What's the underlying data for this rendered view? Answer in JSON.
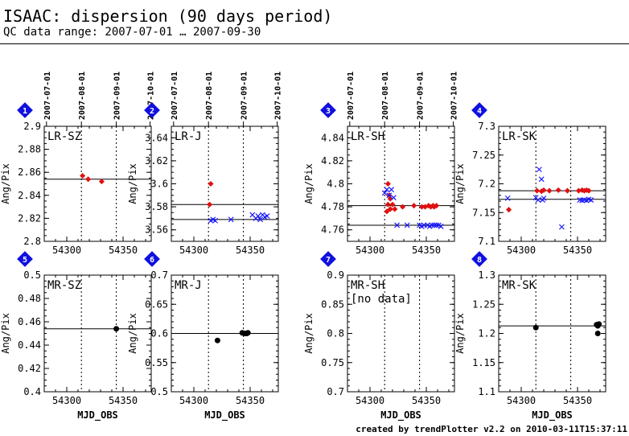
{
  "header": {
    "title": "ISAAC: dispersion (90 days period)",
    "subtitle": "QC data range: 2007-07-01 … 2007-09-30"
  },
  "footer": "created by trendPlotter v2.2 on 2010-03-11T15:37:11",
  "colors": {
    "red": "#e01010",
    "blue": "#1a1aff",
    "black": "#000000",
    "marker": "#1010e0"
  },
  "chart_data": [
    {
      "id": 1,
      "label": "LR-SZ",
      "type": "scatter",
      "ylabel": "Ang/Pix",
      "xlabel": "",
      "xlim": [
        54280,
        54375
      ],
      "ylim": [
        2.8,
        2.9
      ],
      "yticks": [
        "2.8",
        "2.82",
        "2.84",
        "2.86",
        "2.88",
        "2.9"
      ],
      "xticks": [
        "54300",
        "54350"
      ],
      "date_labels": [
        "2007-07-01",
        "2007-08-01",
        "2007-09-01",
        "2007-10-01"
      ],
      "ref_lines": [
        2.854
      ],
      "series": [
        {
          "marker": "diamond",
          "color": "#e01010",
          "points": [
            [
              54314,
              2.857
            ],
            [
              54319,
              2.854
            ],
            [
              54331,
              2.852
            ]
          ]
        }
      ]
    },
    {
      "id": 2,
      "label": "LR-J",
      "type": "scatter",
      "ylabel": "Ang/Pix",
      "xlabel": "",
      "xlim": [
        54280,
        54375
      ],
      "ylim": [
        3.55,
        3.65
      ],
      "yticks": [
        "3.56",
        "3.58",
        "3.6",
        "3.62",
        "3.64"
      ],
      "xticks": [
        "54300",
        "54350"
      ],
      "date_labels": [
        "2007-07-01",
        "2007-08-01",
        "2007-09-01",
        "2007-10-01"
      ],
      "ref_lines": [
        3.582,
        3.569
      ],
      "series": [
        {
          "marker": "diamond",
          "color": "#e01010",
          "points": [
            [
              54315,
              3.6
            ],
            [
              54314,
              3.582
            ]
          ]
        },
        {
          "marker": "cross",
          "color": "#1a1aff",
          "points": [
            [
              54315,
              3.568
            ],
            [
              54317,
              3.569
            ],
            [
              54319,
              3.568
            ],
            [
              54333,
              3.569
            ],
            [
              54352,
              3.573
            ],
            [
              54355,
              3.57
            ],
            [
              54357,
              3.572
            ],
            [
              54359,
              3.569
            ],
            [
              54361,
              3.573
            ],
            [
              54363,
              3.571
            ],
            [
              54365,
              3.572
            ]
          ]
        }
      ]
    },
    {
      "id": 3,
      "label": "LR-SH",
      "type": "scatter",
      "ylabel": "Ang/Pix",
      "xlabel": "",
      "xlim": [
        54280,
        54375
      ],
      "ylim": [
        4.75,
        4.85
      ],
      "yticks": [
        "4.76",
        "4.78",
        "4.8",
        "4.82",
        "4.84"
      ],
      "xticks": [
        "54300",
        "54350"
      ],
      "date_labels": [
        "2007-07-01",
        "2007-08-01",
        "2007-09-01",
        "2007-10-01"
      ],
      "ref_lines": [
        4.781,
        4.764
      ],
      "series": [
        {
          "marker": "diamond",
          "color": "#e01010",
          "points": [
            [
              54316,
              4.8
            ],
            [
              54317,
              4.79
            ],
            [
              54318,
              4.787
            ],
            [
              54316,
              4.782
            ],
            [
              54315,
              4.776
            ],
            [
              54318,
              4.778
            ],
            [
              54320,
              4.782
            ],
            [
              54322,
              4.778
            ],
            [
              54329,
              4.78
            ],
            [
              54339,
              4.781
            ],
            [
              54346,
              4.78
            ],
            [
              54349,
              4.78
            ],
            [
              54352,
              4.781
            ],
            [
              54354,
              4.78
            ],
            [
              54356,
              4.781
            ],
            [
              54357,
              4.78
            ],
            [
              54359,
              4.781
            ]
          ]
        },
        {
          "marker": "cross",
          "color": "#1a1aff",
          "points": [
            [
              54313,
              4.792
            ],
            [
              54315,
              4.795
            ],
            [
              54317,
              4.79
            ],
            [
              54319,
              4.795
            ],
            [
              54321,
              4.788
            ],
            [
              54324,
              4.764
            ],
            [
              54333,
              4.764
            ],
            [
              54344,
              4.764
            ],
            [
              54346,
              4.763
            ],
            [
              54348,
              4.764
            ],
            [
              54351,
              4.764
            ],
            [
              54353,
              4.763
            ],
            [
              54355,
              4.764
            ],
            [
              54357,
              4.764
            ],
            [
              54359,
              4.764
            ],
            [
              54361,
              4.764
            ],
            [
              54363,
              4.763
            ]
          ]
        }
      ]
    },
    {
      "id": 4,
      "label": "LR-SK",
      "type": "scatter",
      "ylabel": "Ang/Pix",
      "xlabel": "",
      "xlim": [
        54280,
        54375
      ],
      "ylim": [
        7.1,
        7.3
      ],
      "yticks": [
        "7.1",
        "7.15",
        "7.2",
        "7.25",
        "7.3"
      ],
      "xticks": [
        "54300",
        "54350"
      ],
      "date_labels": [],
      "ref_lines": [
        7.188,
        7.173
      ],
      "series": [
        {
          "marker": "diamond",
          "color": "#e01010",
          "points": [
            [
              54289,
              7.155
            ],
            [
              54314,
              7.188
            ],
            [
              54318,
              7.187
            ],
            [
              54320,
              7.189
            ],
            [
              54325,
              7.188
            ],
            [
              54333,
              7.189
            ],
            [
              54341,
              7.188
            ],
            [
              54351,
              7.188
            ],
            [
              54354,
              7.189
            ],
            [
              54356,
              7.188
            ],
            [
              54358,
              7.189
            ],
            [
              54360,
              7.188
            ]
          ]
        },
        {
          "marker": "cross",
          "color": "#1a1aff",
          "points": [
            [
              54288,
              7.175
            ],
            [
              54313,
              7.176
            ],
            [
              54315,
              7.172
            ],
            [
              54316,
              7.225
            ],
            [
              54318,
              7.208
            ],
            [
              54319,
              7.172
            ],
            [
              54320,
              7.175
            ],
            [
              54336,
              7.125
            ],
            [
              54352,
              7.172
            ],
            [
              54354,
              7.171
            ],
            [
              54356,
              7.172
            ],
            [
              54358,
              7.171
            ],
            [
              54360,
              7.173
            ],
            [
              54362,
              7.172
            ]
          ]
        }
      ]
    },
    {
      "id": 5,
      "label": "MR-SZ",
      "type": "scatter",
      "ylabel": "Ang/Pix",
      "xlabel": "MJD_OBS",
      "xlim": [
        54280,
        54375
      ],
      "ylim": [
        0.4,
        0.5
      ],
      "yticks": [
        "0.4",
        "0.42",
        "0.44",
        "0.46",
        "0.48",
        "0.5"
      ],
      "xticks": [
        "54300",
        "54350"
      ],
      "date_labels": [],
      "ref_lines": [
        0.454
      ],
      "series": [
        {
          "marker": "circle",
          "color": "#000000",
          "points": [
            [
              54344,
              0.454
            ]
          ]
        }
      ]
    },
    {
      "id": 6,
      "label": "MR-J",
      "type": "scatter",
      "ylabel": "Ang/Pix",
      "xlabel": "MJD_OBS",
      "xlim": [
        54280,
        54375
      ],
      "ylim": [
        0.5,
        0.7
      ],
      "yticks": [
        "0.5",
        "0.55",
        "0.6",
        "0.65",
        "0.7"
      ],
      "xticks": [
        "54300",
        "54350"
      ],
      "date_labels": [],
      "ref_lines": [
        0.6
      ],
      "series": [
        {
          "marker": "circle",
          "color": "#000000",
          "points": [
            [
              54321,
              0.588
            ],
            [
              54343,
              0.601
            ],
            [
              54345,
              0.6
            ],
            [
              54347,
              0.6
            ],
            [
              54348,
              0.601
            ]
          ]
        }
      ]
    },
    {
      "id": 7,
      "label": "MR-SH",
      "note": "[no data]",
      "type": "scatter",
      "ylabel": "Ang/Pix",
      "xlabel": "MJD_OBS",
      "xlim": [
        54280,
        54375
      ],
      "ylim": [
        0.7,
        0.9
      ],
      "yticks": [
        "0.7",
        "0.75",
        "0.8",
        "0.85",
        "0.9"
      ],
      "xticks": [
        "54300",
        "54350"
      ],
      "date_labels": [],
      "ref_lines": [],
      "series": []
    },
    {
      "id": 8,
      "label": "MR-SK",
      "type": "scatter",
      "ylabel": "Ang/Pix",
      "xlabel": "MJD_OBS",
      "xlim": [
        54280,
        54375
      ],
      "ylim": [
        1.1,
        1.3
      ],
      "yticks": [
        "1.1",
        "1.15",
        "1.2",
        "1.25",
        "1.3"
      ],
      "xticks": [
        "54300",
        "54350"
      ],
      "date_labels": [],
      "ref_lines": [
        1.213
      ],
      "series": [
        {
          "marker": "circle",
          "color": "#000000",
          "points": [
            [
              54313,
              1.21
            ],
            [
              54367,
              1.215
            ],
            [
              54368,
              1.213
            ],
            [
              54369,
              1.216
            ],
            [
              54368,
              1.2
            ]
          ]
        }
      ]
    }
  ]
}
